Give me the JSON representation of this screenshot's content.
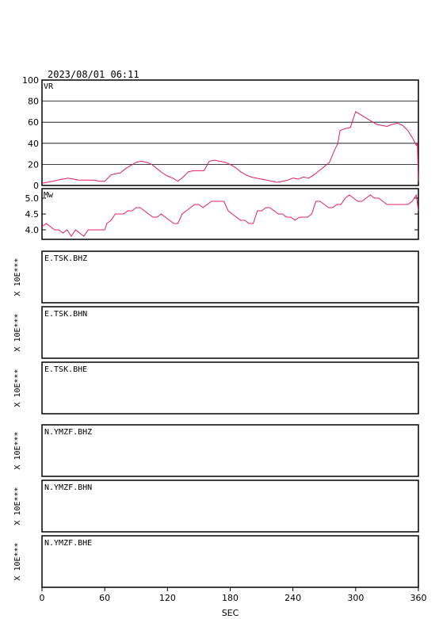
{
  "chart_data": [
    {
      "type": "line",
      "title": "2023/08/01 06:11",
      "panel_label": "VR",
      "xlim": [
        0,
        360
      ],
      "ylim": [
        0,
        100
      ],
      "yticks": [
        0,
        20,
        40,
        60,
        80,
        100
      ],
      "grid": "horizontal",
      "color": "#e0205a",
      "x": [
        0,
        5,
        10,
        15,
        20,
        25,
        30,
        35,
        40,
        45,
        50,
        55,
        60,
        62,
        66,
        70,
        75,
        80,
        85,
        90,
        95,
        100,
        105,
        110,
        115,
        120,
        125,
        130,
        135,
        140,
        145,
        150,
        155,
        160,
        165,
        170,
        175,
        180,
        185,
        190,
        195,
        200,
        205,
        210,
        215,
        220,
        225,
        230,
        235,
        240,
        245,
        250,
        255,
        260,
        265,
        270,
        275,
        280,
        283,
        285,
        290,
        295,
        300,
        305,
        310,
        315,
        320,
        325,
        330,
        335,
        340,
        345,
        350,
        355,
        358,
        359,
        360
      ],
      "y": [
        2,
        3,
        4,
        5,
        6,
        7,
        6,
        5,
        5,
        5,
        5,
        4,
        4,
        6,
        10,
        11,
        12,
        16,
        19,
        22,
        23,
        22,
        20,
        16,
        12,
        9,
        7,
        4,
        8,
        13,
        14,
        14,
        14,
        23,
        24,
        23,
        22,
        20,
        17,
        13,
        10,
        8,
        7,
        6,
        5,
        4,
        3,
        4,
        5,
        7,
        6,
        8,
        7,
        10,
        14,
        18,
        22,
        34,
        40,
        52,
        54,
        55,
        70,
        67,
        64,
        61,
        58,
        57,
        56,
        58,
        59,
        57,
        52,
        44,
        38,
        40,
        4
      ]
    },
    {
      "type": "line",
      "panel_label": "Mw",
      "xlim": [
        0,
        360
      ],
      "ylim": [
        3.7,
        5.3
      ],
      "yticks": [
        4.0,
        4.5,
        5.0
      ],
      "yticklabels": [
        "4.0",
        "4.5",
        "5.0"
      ],
      "color": "#e0205a",
      "x": [
        0,
        4,
        8,
        12,
        16,
        20,
        24,
        28,
        32,
        36,
        40,
        44,
        48,
        52,
        56,
        60,
        62,
        66,
        70,
        74,
        78,
        82,
        86,
        90,
        94,
        98,
        102,
        106,
        110,
        114,
        118,
        122,
        126,
        130,
        134,
        138,
        142,
        146,
        150,
        154,
        158,
        162,
        166,
        170,
        174,
        178,
        182,
        186,
        190,
        194,
        198,
        202,
        206,
        210,
        214,
        218,
        222,
        226,
        230,
        234,
        238,
        242,
        246,
        250,
        254,
        258,
        262,
        266,
        270,
        274,
        278,
        282,
        286,
        290,
        294,
        298,
        302,
        306,
        310,
        314,
        318,
        322,
        326,
        330,
        334,
        338,
        342,
        346,
        350,
        354,
        358,
        360
      ],
      "y": [
        4.1,
        4.2,
        4.1,
        4.0,
        4.0,
        3.9,
        4.0,
        3.8,
        4.0,
        3.9,
        3.8,
        4.0,
        4.0,
        4.0,
        4.0,
        4.0,
        4.2,
        4.3,
        4.5,
        4.5,
        4.5,
        4.6,
        4.6,
        4.7,
        4.7,
        4.6,
        4.5,
        4.4,
        4.4,
        4.5,
        4.4,
        4.3,
        4.2,
        4.2,
        4.5,
        4.6,
        4.7,
        4.8,
        4.8,
        4.7,
        4.8,
        4.9,
        4.9,
        4.9,
        4.9,
        4.6,
        4.5,
        4.4,
        4.3,
        4.3,
        4.2,
        4.2,
        4.6,
        4.6,
        4.7,
        4.7,
        4.6,
        4.5,
        4.5,
        4.4,
        4.4,
        4.3,
        4.4,
        4.4,
        4.4,
        4.5,
        4.9,
        4.9,
        4.8,
        4.7,
        4.7,
        4.8,
        4.8,
        5.0,
        5.1,
        5.0,
        4.9,
        4.9,
        5.0,
        5.1,
        5.0,
        5.0,
        4.9,
        4.8,
        4.8,
        4.8,
        4.8,
        4.8,
        4.8,
        4.9,
        5.1,
        4.6
      ]
    },
    {
      "type": "line",
      "series": [
        {
          "name": "E.TSK.BHZ",
          "values": []
        },
        {
          "name": "E.TSK.BHN",
          "values": []
        },
        {
          "name": "E.TSK.BHE",
          "values": []
        },
        {
          "name": "N.YMZF.BHZ",
          "values": []
        },
        {
          "name": "N.YMZF.BHN",
          "values": []
        },
        {
          "name": "N.YMZF.BHE",
          "values": []
        }
      ],
      "ylabel": "X 10E***",
      "xlabel": "SEC",
      "xlim": [
        0,
        360
      ],
      "xticks": [
        0,
        60,
        120,
        180,
        240,
        300,
        360
      ]
    }
  ]
}
